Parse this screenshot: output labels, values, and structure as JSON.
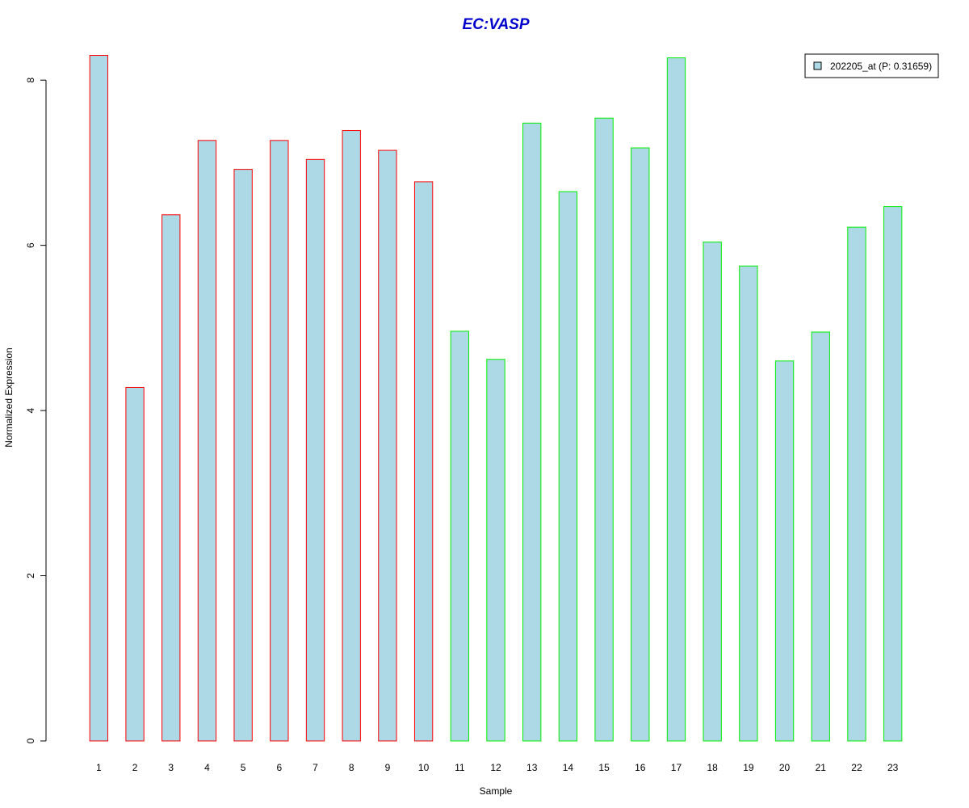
{
  "chart_data": {
    "type": "bar",
    "title": "EC:VASP",
    "xlabel": "Sample",
    "ylabel": "Normalized Expression",
    "categories": [
      "1",
      "2",
      "3",
      "4",
      "5",
      "6",
      "7",
      "8",
      "9",
      "10",
      "11",
      "12",
      "13",
      "14",
      "15",
      "16",
      "17",
      "18",
      "19",
      "20",
      "21",
      "22",
      "23"
    ],
    "values": [
      8.3,
      4.28,
      6.37,
      7.27,
      6.92,
      7.27,
      7.04,
      7.39,
      7.15,
      6.77,
      4.96,
      4.62,
      7.48,
      6.65,
      7.54,
      7.18,
      8.27,
      6.04,
      5.75,
      4.6,
      4.95,
      6.22,
      6.47
    ],
    "group_border_colors": [
      "#ff0000",
      "#ff0000",
      "#ff0000",
      "#ff0000",
      "#ff0000",
      "#ff0000",
      "#ff0000",
      "#ff0000",
      "#ff0000",
      "#ff0000",
      "#00ee00",
      "#00ee00",
      "#00ee00",
      "#00ee00",
      "#00ee00",
      "#00ee00",
      "#00ee00",
      "#00ee00",
      "#00ee00",
      "#00ee00",
      "#00ee00",
      "#00ee00",
      "#00ee00"
    ],
    "fill_color": "#add8e6",
    "ylim": [
      0,
      8.4
    ],
    "yticks": [
      0,
      2,
      4,
      6,
      8
    ],
    "grid": false,
    "legend": {
      "placement": "top-right",
      "entries": [
        {
          "label": "202205_at (P: 0.31659)",
          "color": "#add8e6"
        }
      ]
    }
  }
}
